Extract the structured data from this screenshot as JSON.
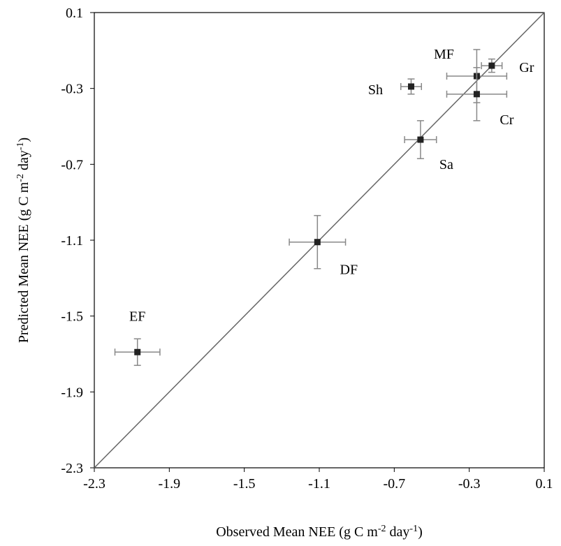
{
  "chart_data": {
    "type": "scatter",
    "x_label": [
      "Observed Mean NEE (g C m",
      "-2",
      " day",
      "-1",
      ")"
    ],
    "y_label": [
      "Predicted Mean NEE (g C m",
      "-2",
      " day",
      "-1",
      ")"
    ],
    "xlim": [
      -2.3,
      0.1
    ],
    "ylim": [
      -2.3,
      0.1
    ],
    "xticks": [
      -2.3,
      -1.9,
      -1.5,
      -1.1,
      -0.7,
      -0.3,
      0.1
    ],
    "yticks": [
      -2.3,
      -1.9,
      -1.5,
      -1.1,
      -0.7,
      -0.3,
      0.1
    ],
    "marker_color": "#222222",
    "error_color": "#888888",
    "line_color": "#666666",
    "points": [
      {
        "name": "EF",
        "x": -2.07,
        "y": -1.69,
        "xerr": 0.12,
        "yerr": 0.07
      },
      {
        "name": "DF",
        "x": -1.11,
        "y": -1.11,
        "xerr": 0.15,
        "yerr": 0.14
      },
      {
        "name": "Sa",
        "x": -0.56,
        "y": -0.57,
        "xerr": 0.085,
        "yerr": 0.1
      },
      {
        "name": "Sh",
        "x": -0.61,
        "y": -0.29,
        "xerr": 0.055,
        "yerr": 0.04
      },
      {
        "name": "MF",
        "x": -0.26,
        "y": -0.235,
        "xerr": 0.16,
        "yerr": 0.14
      },
      {
        "name": "Cr",
        "x": -0.26,
        "y": -0.33,
        "xerr": 0.16,
        "yerr": 0.14
      },
      {
        "name": "Gr",
        "x": -0.18,
        "y": -0.18,
        "xerr": 0.055,
        "yerr": 0.035
      }
    ]
  }
}
